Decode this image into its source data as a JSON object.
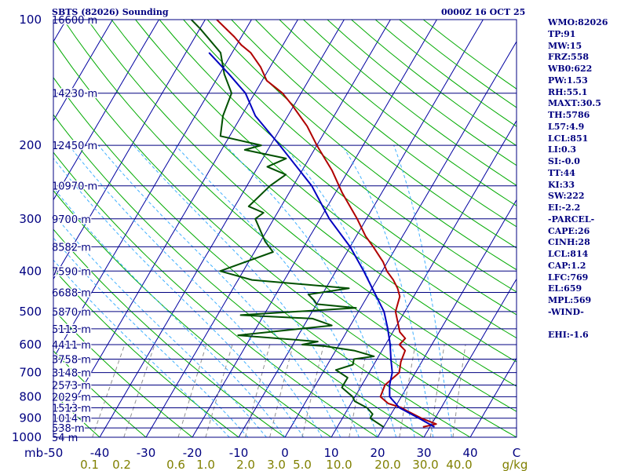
{
  "header": {
    "station_title": "SBTS (82026) Sounding",
    "time_label": "0000Z 16 OCT 25"
  },
  "colors": {
    "isobar": "#000080",
    "isotherm": "#0000a0",
    "dry_adiabat": "#00aa00",
    "moist_adiabat": "#40b0ff",
    "mixing_ratio": "#909090",
    "temperature": "#b00000",
    "dewpoint": "#005000",
    "parcel": "#0000c0",
    "axis_text": "#000080",
    "mixing_text": "#808000"
  },
  "stats": [
    "WMO:82026",
    "TP:91",
    "MW:15",
    "FRZ:558",
    "WB0:622",
    "PW:1.53",
    "RH:55.1",
    "MAXT:30.5",
    "TH:5786",
    "L57:4.9",
    "LCL:851",
    "LI:0.3",
    "SI:-0.0",
    "TT:44",
    "KI:33",
    "SW:222",
    "EI:-2.2",
    "-PARCEL-",
    "CAPE:26",
    "CINH:28",
    "LCL:814",
    "CAP:1.2",
    "LFC:769",
    "EL:659",
    "MPL:569",
    "-WIND-",
    "",
    "EHI:-1.6"
  ],
  "chart_data": {
    "type": "line",
    "title": "SBTS (82026) Sounding",
    "xlabel": "",
    "ylabel": "mb",
    "xlim": [
      -50,
      50
    ],
    "ylim": [
      1000,
      100
    ],
    "y_scale": "log",
    "pressure_ticks": [
      100,
      200,
      300,
      400,
      500,
      600,
      700,
      800,
      900,
      1000
    ],
    "temperature_ticks": [
      -50,
      -40,
      -30,
      -20,
      -10,
      0,
      10,
      20,
      30,
      40,
      50
    ],
    "temperature_tick_labels": [
      "-50",
      "-40",
      "-30",
      "-20",
      "-10",
      "0",
      "10",
      "20",
      "30",
      "40",
      "C"
    ],
    "mixing_ratio_labels": [
      "0.1",
      "0.2",
      "0.6",
      "1.0",
      "2.0",
      "3.0",
      "5.0",
      "10.0",
      "20.0",
      "30.0",
      "40.0",
      "g/kg"
    ],
    "height_levels": [
      {
        "p": 100,
        "label": "16600 m"
      },
      {
        "p": 150,
        "label": "14230 m"
      },
      {
        "p": 200,
        "label": "12450 m"
      },
      {
        "p": 250,
        "label": "10970 m"
      },
      {
        "p": 300,
        "label": "9700 m"
      },
      {
        "p": 350,
        "label": "8582 m"
      },
      {
        "p": 400,
        "label": "7590 m"
      },
      {
        "p": 450,
        "label": "6688 m"
      },
      {
        "p": 500,
        "label": "5870 m"
      },
      {
        "p": 550,
        "label": "5113 m"
      },
      {
        "p": 600,
        "label": "4411 m"
      },
      {
        "p": 650,
        "label": "3758 m"
      },
      {
        "p": 700,
        "label": "3148 m"
      },
      {
        "p": 750,
        "label": "2573 m"
      },
      {
        "p": 800,
        "label": "2029 m"
      },
      {
        "p": 850,
        "label": "1513 m"
      },
      {
        "p": 900,
        "label": "1014 m"
      },
      {
        "p": 950,
        "label": "538 m"
      },
      {
        "p": 1000,
        "label": "54 m"
      }
    ],
    "series": [
      {
        "key": "temperature",
        "points": [
          [
            945,
            28.5
          ],
          [
            930,
            31.0
          ],
          [
            900,
            27.0
          ],
          [
            860,
            22.5
          ],
          [
            850,
            21.5
          ],
          [
            830,
            18.0
          ],
          [
            800,
            15.5
          ],
          [
            750,
            15.0
          ],
          [
            700,
            16.5
          ],
          [
            660,
            15.5
          ],
          [
            620,
            15.0
          ],
          [
            600,
            13.0
          ],
          [
            580,
            13.5
          ],
          [
            560,
            11.5
          ],
          [
            500,
            8.0
          ],
          [
            460,
            7.0
          ],
          [
            440,
            5.5
          ],
          [
            420,
            3.5
          ],
          [
            400,
            1.0
          ],
          [
            380,
            -1.0
          ],
          [
            350,
            -5.0
          ],
          [
            330,
            -8.0
          ],
          [
            300,
            -12.0
          ],
          [
            260,
            -18.5
          ],
          [
            230,
            -23.5
          ],
          [
            200,
            -30.0
          ],
          [
            180,
            -34.5
          ],
          [
            160,
            -40.5
          ],
          [
            150,
            -44.0
          ],
          [
            140,
            -49.0
          ],
          [
            130,
            -52.0
          ],
          [
            120,
            -56.0
          ],
          [
            115,
            -59.0
          ],
          [
            110,
            -61.5
          ],
          [
            100,
            -67.5
          ]
        ]
      },
      {
        "key": "dewpoint",
        "points": [
          [
            945,
            20.0
          ],
          [
            900,
            16.0
          ],
          [
            880,
            16.0
          ],
          [
            850,
            14.0
          ],
          [
            820,
            10.5
          ],
          [
            800,
            9.5
          ],
          [
            760,
            6.0
          ],
          [
            720,
            6.0
          ],
          [
            690,
            2.5
          ],
          [
            670,
            5.5
          ],
          [
            650,
            5.0
          ],
          [
            640,
            9.0
          ],
          [
            620,
            4.0
          ],
          [
            605,
            -3.0
          ],
          [
            600,
            -8.0
          ],
          [
            590,
            -5.0
          ],
          [
            570,
            -23.0
          ],
          [
            540,
            -4.0
          ],
          [
            520,
            -9.0
          ],
          [
            510,
            -25.0
          ],
          [
            490,
            -1.0
          ],
          [
            480,
            -10.0
          ],
          [
            470,
            -11.0
          ],
          [
            455,
            -13.0
          ],
          [
            440,
            -5.0
          ],
          [
            420,
            -27.0
          ],
          [
            400,
            -35.0
          ],
          [
            360,
            -26.0
          ],
          [
            340,
            -29.0
          ],
          [
            300,
            -34.0
          ],
          [
            290,
            -33.0
          ],
          [
            280,
            -37.0
          ],
          [
            250,
            -35.0
          ],
          [
            235,
            -33.0
          ],
          [
            225,
            -38.0
          ],
          [
            215,
            -35.0
          ],
          [
            205,
            -45.0
          ],
          [
            200,
            -42.0
          ],
          [
            190,
            -52.0
          ],
          [
            170,
            -54.0
          ],
          [
            150,
            -55.0
          ],
          [
            135,
            -59.0
          ],
          [
            120,
            -62.5
          ],
          [
            105,
            -70.0
          ],
          [
            100,
            -73.0
          ]
        ]
      },
      {
        "key": "parcel",
        "points": [
          [
            945,
            31.0
          ],
          [
            900,
            26.5
          ],
          [
            850,
            21.0
          ],
          [
            814,
            18.5
          ],
          [
            800,
            17.5
          ],
          [
            750,
            16.0
          ],
          [
            700,
            15.0
          ],
          [
            650,
            13.0
          ],
          [
            600,
            11.0
          ],
          [
            550,
            8.5
          ],
          [
            500,
            5.5
          ],
          [
            450,
            1.0
          ],
          [
            400,
            -4.0
          ],
          [
            350,
            -10.0
          ],
          [
            300,
            -18.0
          ],
          [
            250,
            -26.0
          ],
          [
            200,
            -38.0
          ],
          [
            170,
            -47.0
          ],
          [
            150,
            -52.0
          ],
          [
            135,
            -58.0
          ],
          [
            120,
            -65.0
          ]
        ]
      }
    ]
  }
}
